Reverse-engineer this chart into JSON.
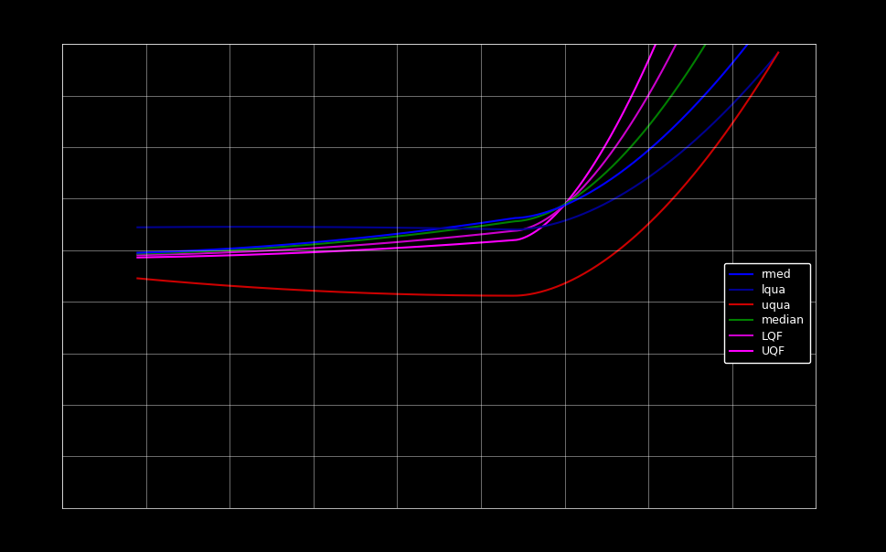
{
  "background_color": "#000000",
  "grid_color": "#ffffff",
  "figure_facecolor": "#000000",
  "axes_facecolor": "#000000",
  "text_color": "#ffffff",
  "xlim": [
    0,
    10
  ],
  "ylim": [
    0,
    10
  ],
  "lines": {
    "rmed": {
      "color": "#0000ff",
      "linewidth": 1.5
    },
    "lqua": {
      "color": "#000090",
      "linewidth": 1.5
    },
    "uqua": {
      "color": "#cc0000",
      "linewidth": 1.5
    },
    "median": {
      "color": "#008000",
      "linewidth": 1.5
    },
    "LQF": {
      "color": "#cc00cc",
      "linewidth": 1.5
    },
    "UQF": {
      "color": "#ff00ff",
      "linewidth": 1.5
    }
  },
  "legend_facecolor": "#000000",
  "legend_edgecolor": "#ffffff",
  "legend_textcolor": "#ffffff",
  "n_xgrid": 9,
  "n_ygrid": 9
}
